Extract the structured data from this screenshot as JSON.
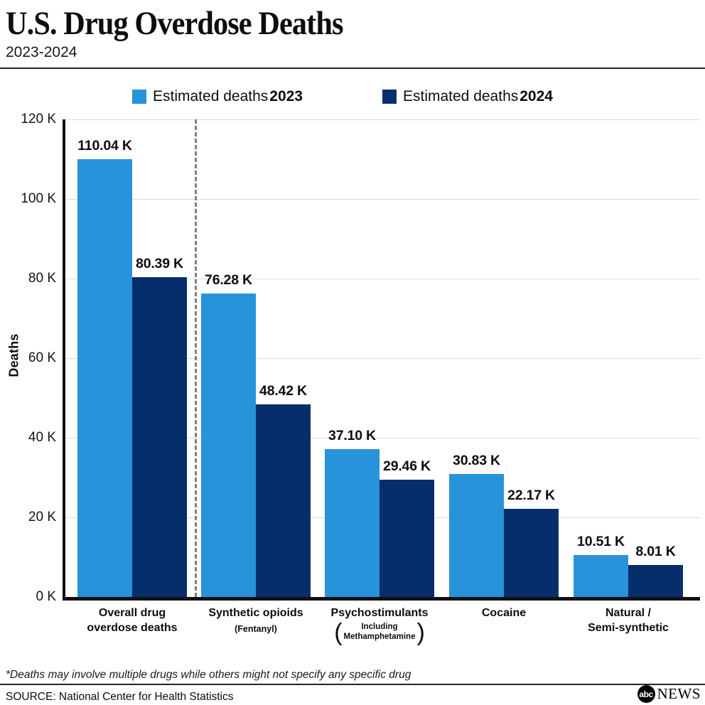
{
  "header": {
    "title": "U.S. Drug Overdose Deaths",
    "subtitle": "2023-2024"
  },
  "legend": [
    {
      "label": "Estimated deaths",
      "year": "2023",
      "color": "#2793db"
    },
    {
      "label": "Estimated deaths",
      "year": "2024",
      "color": "#062e6b"
    }
  ],
  "chart_data": {
    "type": "bar",
    "title": "U.S. Drug Overdose Deaths",
    "subtitle": "2023-2024",
    "ylabel": "Deaths",
    "xlabel": "",
    "ylim_thousands": [
      0,
      120
    ],
    "grid": true,
    "legend_position": "top",
    "yticks": [
      {
        "value": 120,
        "label": "120 K"
      },
      {
        "value": 100,
        "label": "100 K"
      },
      {
        "value": 80,
        "label": "80 K"
      },
      {
        "value": 60,
        "label": "60 K"
      },
      {
        "value": 40,
        "label": "40 K"
      },
      {
        "value": 20,
        "label": "20 K"
      },
      {
        "value": 0,
        "label": "0 K"
      }
    ],
    "categories": [
      {
        "id": "overall-drug-overdose-deaths",
        "label_lines": [
          "Overall drug",
          "overdose deaths"
        ]
      },
      {
        "id": "synthetic-opioids",
        "label_lines": [
          "Synthetic opioids"
        ],
        "sublabel": "(Fentanyl)"
      },
      {
        "id": "psychostimulants",
        "label_lines": [
          "Psychostimulants"
        ],
        "sublabel_parenthesized_lines": [
          "Including",
          "Methamphetamine"
        ]
      },
      {
        "id": "cocaine",
        "label_lines": [
          "Cocaine"
        ]
      },
      {
        "id": "natural-semi-synthetic",
        "label_lines": [
          "Natural /",
          "Semi-synthetic"
        ]
      }
    ],
    "series": [
      {
        "name": "Estimated deaths 2023",
        "color": "#2793db",
        "values_thousands": [
          110.04,
          76.28,
          37.1,
          30.83,
          10.51
        ],
        "value_labels": [
          "110.04 K",
          "76.28 K",
          "37.10 K",
          "30.83 K",
          "10.51 K"
        ]
      },
      {
        "name": "Estimated deaths 2024",
        "color": "#062e6b",
        "values_thousands": [
          80.39,
          48.42,
          29.46,
          22.17,
          8.01
        ],
        "value_labels": [
          "80.39 K",
          "48.42 K",
          "29.46 K",
          "22.17 K",
          "8.01 K"
        ]
      }
    ],
    "separator_after_category_index": 0
  },
  "footer": {
    "footnote": "*Deaths may involve multiple drugs while others might not specify any specific drug",
    "source": "SOURCE: National Center for Health Statistics",
    "logo": {
      "abc": "abc",
      "news": "NEWS"
    }
  }
}
